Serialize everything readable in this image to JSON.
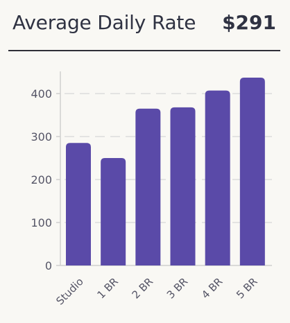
{
  "header": {
    "title": "Average Daily Rate",
    "value": "$291"
  },
  "colors": {
    "bar": "#5a4aa8",
    "grid": "#d6d6d6",
    "axis": "#cfcfcf"
  },
  "chart_data": {
    "type": "bar",
    "title": "Average Daily Rate",
    "xlabel": "",
    "ylabel": "",
    "categories": [
      "Studio",
      "1 BR",
      "2 BR",
      "3 BR",
      "4 BR",
      "5 BR"
    ],
    "values": [
      285,
      250,
      365,
      368,
      407,
      437
    ],
    "ylim": [
      0,
      450
    ],
    "yticks": [
      0,
      100,
      200,
      300,
      400
    ],
    "grid": true
  }
}
